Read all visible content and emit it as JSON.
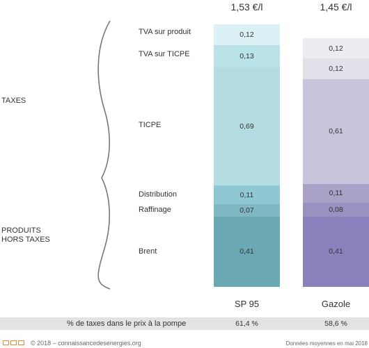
{
  "columns": [
    {
      "price": "1,53 €/l",
      "name": "SP 95",
      "tax_share": "61,4 %"
    },
    {
      "price": "1,45 €/l",
      "name": "Gazole",
      "tax_share": "58,6 %"
    }
  ],
  "groups": {
    "taxes": "TAXES",
    "products_line1": "PRODUITS",
    "products_line2": "HORS TAXES"
  },
  "row_labels": [
    "TVA sur produit",
    "TVA sur TICPE",
    "TICPE",
    "Distribution",
    "Raffinage",
    "Brent"
  ],
  "tax_row_label": "% de taxes dans le prix à la pompe",
  "footer": {
    "copyright": "© 2018 – connaissancedesenergies.org",
    "note": "Données moyennes en mai 2018"
  },
  "colors": {
    "sp95": [
      "#dbf1f5",
      "#b9e3e9",
      "#b4dde3",
      "#8ec8d2",
      "#7fb8c2",
      "#6aa8b3"
    ],
    "gazole": [
      "#ecebef",
      "#e2e0e8",
      "#c8c4db",
      "#a9a2c6",
      "#9a91c1",
      "#8b82bd"
    ],
    "logo": "#e8893a",
    "tax_bar": "#e3e3e3"
  },
  "chart_data": {
    "type": "bar",
    "stacked": true,
    "categories": [
      "SP 95",
      "Gazole"
    ],
    "series": [
      {
        "name": "TVA sur produit",
        "values": [
          0.12,
          0.12
        ]
      },
      {
        "name": "TVA sur TICPE",
        "values": [
          0.13,
          0.12
        ]
      },
      {
        "name": "TICPE",
        "values": [
          0.69,
          0.61
        ]
      },
      {
        "name": "Distribution",
        "values": [
          0.11,
          0.11
        ]
      },
      {
        "name": "Raffinage",
        "values": [
          0.07,
          0.08
        ]
      },
      {
        "name": "Brent",
        "values": [
          0.41,
          0.41
        ]
      }
    ],
    "value_labels": [
      [
        "0,12",
        "0,13",
        "0,69",
        "0,11",
        "0,07",
        "0,41"
      ],
      [
        "0,12",
        "0,12",
        "0,61",
        "0,11",
        "0,08",
        "0,41"
      ]
    ],
    "totals": [
      "1,53 €/l",
      "1,45 €/l"
    ]
  }
}
